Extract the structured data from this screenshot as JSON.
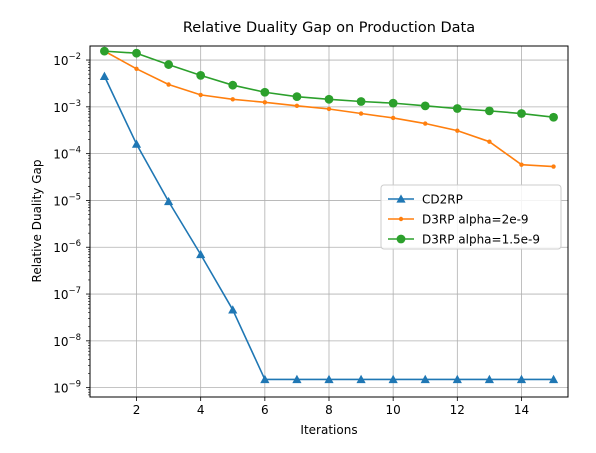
{
  "chart_data": {
    "type": "line",
    "title": "Relative Duality Gap on Production Data",
    "xlabel": "Iterations",
    "ylabel": "Relative Duality Gap",
    "x_scale": "linear",
    "y_scale": "log",
    "xlim": [
      0.55,
      15.45
    ],
    "ylim_log10": [
      -9.2,
      -1.7
    ],
    "xticks": [
      2,
      4,
      6,
      8,
      10,
      12,
      14
    ],
    "yticks": [
      {
        "exp": -9,
        "base": "10",
        "sup": "−9"
      },
      {
        "exp": -8,
        "base": "10",
        "sup": "−8"
      },
      {
        "exp": -7,
        "base": "10",
        "sup": "−7"
      },
      {
        "exp": -6,
        "base": "10",
        "sup": "−6"
      },
      {
        "exp": -5,
        "base": "10",
        "sup": "−5"
      },
      {
        "exp": -4,
        "base": "10",
        "sup": "−4"
      },
      {
        "exp": -3,
        "base": "10",
        "sup": "−3"
      },
      {
        "exp": -2,
        "base": "10",
        "sup": "−2"
      }
    ],
    "grid": true,
    "legend_position": "center-right",
    "series": [
      {
        "name": "CD2RP",
        "color": "#1f77b4",
        "marker": "triangle",
        "x": [
          1,
          2,
          3,
          4,
          5,
          6,
          7,
          8,
          9,
          10,
          11,
          12,
          13,
          14,
          15
        ],
        "y": [
          0.0045,
          0.00016,
          9.5e-06,
          7e-07,
          4.6e-08,
          1.5e-09,
          1.5e-09,
          1.5e-09,
          1.5e-09,
          1.5e-09,
          1.5e-09,
          1.5e-09,
          1.5e-09,
          1.5e-09,
          1.5e-09
        ]
      },
      {
        "name": "D3RP alpha=2e-9",
        "color": "#ff7f0e",
        "marker": "small-circle",
        "x": [
          1,
          2,
          3,
          4,
          5,
          6,
          7,
          8,
          9,
          10,
          11,
          12,
          13,
          14,
          15
        ],
        "y": [
          0.0155,
          0.0065,
          0.003,
          0.0018,
          0.00145,
          0.00125,
          0.00105,
          0.0009,
          0.00072,
          0.00058,
          0.00044,
          0.00031,
          0.00018,
          5.8e-05,
          5.3e-05
        ]
      },
      {
        "name": "D3RP alpha=1.5e-9",
        "color": "#2ca02c",
        "marker": "circle",
        "x": [
          1,
          2,
          3,
          4,
          5,
          6,
          7,
          8,
          9,
          10,
          11,
          12,
          13,
          14,
          15
        ],
        "y": [
          0.0155,
          0.014,
          0.008,
          0.0047,
          0.0029,
          0.00205,
          0.00165,
          0.00145,
          0.0013,
          0.0012,
          0.00105,
          0.00092,
          0.00082,
          0.00072,
          0.0006
        ]
      }
    ]
  }
}
